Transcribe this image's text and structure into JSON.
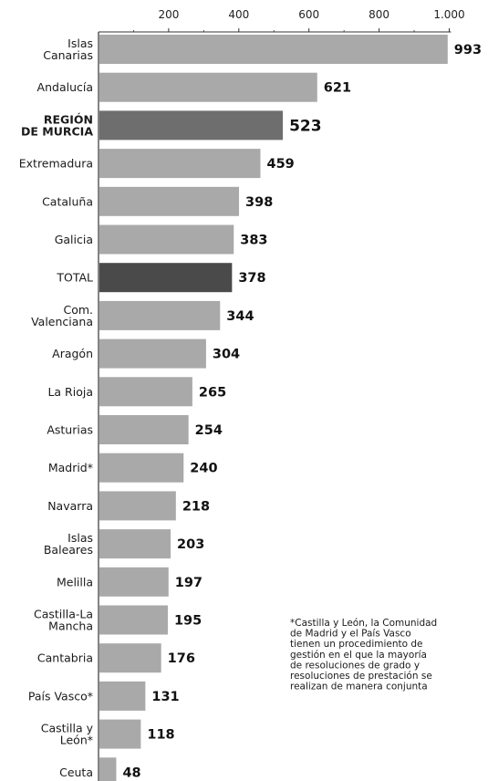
{
  "chart_data": {
    "type": "bar",
    "orientation": "horizontal",
    "xlim": [
      0,
      1000
    ],
    "x_ticks": [
      "200",
      "400",
      "600",
      "800",
      "1.000"
    ],
    "x_tick_values": [
      200,
      400,
      600,
      800,
      1000
    ],
    "grid": false,
    "categories": [
      "Islas\nCanarias",
      "Andalucía",
      "REGIÓN\nDE MURCIA",
      "Extremadura",
      "Cataluña",
      "Galicia",
      "TOTAL",
      "Com.\nValenciana",
      "Aragón",
      "La Rioja",
      "Asturias",
      "Madrid*",
      "Navarra",
      "Islas\nBaleares",
      "Melilla",
      "Castilla-La\nMancha",
      "Cantabria",
      "País Vasco*",
      "Castilla y\nLeón*",
      "Ceuta"
    ],
    "values": [
      993,
      621,
      523,
      459,
      398,
      383,
      378,
      344,
      304,
      265,
      254,
      240,
      218,
      203,
      197,
      195,
      176,
      131,
      118,
      48
    ],
    "highlight": {
      "REGIÓN\nDE MURCIA": "murcia",
      "TOTAL": "total"
    },
    "colors": {
      "default": "#a9a9a9",
      "murcia": "#6e6e6e",
      "total": "#4a4a4a",
      "axis": "#333333"
    },
    "footnote": "*Castilla y León, la Comunidad\nde Madrid y el País Vasco\ntienen un procedimiento de\ngestión en el que la mayoría\nde resoluciones de grado y\nresoluciones de prestación se\nrealizan de manera conjunta"
  }
}
